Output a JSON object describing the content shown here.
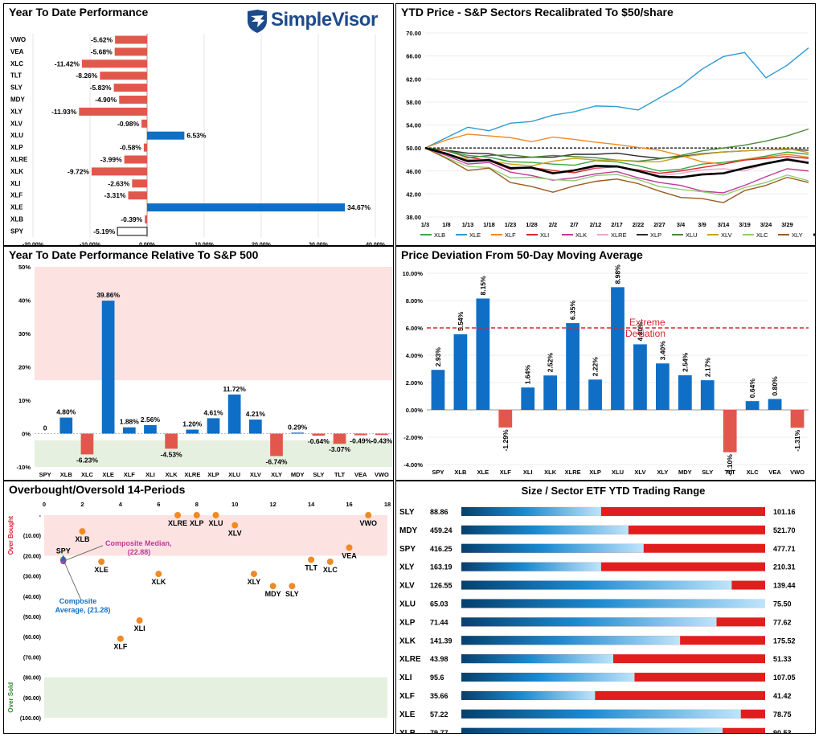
{
  "logo": {
    "text": "SimpleVisor",
    "icon": "eagle-logo-icon"
  },
  "colors": {
    "blue": "#0f6fc6",
    "red": "#e2574c",
    "dark": "#000000"
  },
  "panels": {
    "ytd": {
      "title": "Year To Date Performance"
    },
    "price": {
      "title": "YTD Price - S&P Sectors Recalibrated To $50/share"
    },
    "rel": {
      "title": "Year To Date Performance Relative To S&P 500"
    },
    "dev": {
      "title": "Price Deviation From 50-Day Moving Average",
      "annotation": [
        "Extreme",
        "Deviation"
      ]
    },
    "obos": {
      "title": "Overbought/Oversold 14-Periods",
      "top_label": "Over Bought",
      "bottom_label": "Over Sold"
    },
    "range": {
      "title": "Size / Sector ETF YTD Trading Range"
    }
  },
  "chart_data": [
    {
      "id": "ytd",
      "type": "bar",
      "orientation": "horizontal",
      "title": "Year To Date Performance",
      "categories": [
        "VWO",
        "VEA",
        "XLC",
        "TLT",
        "SLY",
        "MDY",
        "XLY",
        "XLV",
        "XLU",
        "XLP",
        "XLRE",
        "XLK",
        "XLI",
        "XLF",
        "XLE",
        "XLB",
        "SPY"
      ],
      "values": [
        -5.62,
        -5.68,
        -11.42,
        -8.26,
        -5.83,
        -4.9,
        -11.93,
        -0.98,
        6.53,
        -0.58,
        -3.99,
        -9.72,
        -2.63,
        -3.31,
        34.67,
        -0.39,
        -5.19
      ],
      "labels": [
        "-5.62%",
        "-5.68%",
        "-11.42%",
        "-8.26%",
        "-5.83%",
        "-4.90%",
        "-11.93%",
        "-0.98%",
        "6.53%",
        "-0.58%",
        "-3.99%",
        "-9.72%",
        "-2.63%",
        "-3.31%",
        "34.67%",
        "-0.39%",
        "-5.19%"
      ],
      "xlim": [
        -20,
        40
      ],
      "xticks": [
        "-20.00%",
        "-10.00%",
        "0.00%",
        "10.00%",
        "20.00%",
        "30.00%",
        "40.00%"
      ]
    },
    {
      "id": "price",
      "type": "line",
      "title": "YTD Price - S&P Sectors Recalibrated To $50/share",
      "ylim": [
        38,
        70
      ],
      "yticks": [
        "38.00",
        "42.00",
        "46.00",
        "50.00",
        "54.00",
        "58.00",
        "62.00",
        "66.00",
        "70.00"
      ],
      "xticks": [
        "1/3",
        "1/8",
        "1/13",
        "1/18",
        "1/23",
        "1/28",
        "2/2",
        "2/7",
        "2/12",
        "2/17",
        "2/22",
        "2/27",
        "3/4",
        "3/9",
        "3/14",
        "3/19",
        "3/24",
        "3/29"
      ],
      "x_days": [
        0,
        5,
        10,
        15,
        20,
        25,
        30,
        35,
        40,
        45,
        50,
        55,
        60,
        65,
        70,
        75,
        80,
        85,
        90
      ],
      "reference_line": 50,
      "series": [
        {
          "name": "XLB",
          "color": "#3aa648",
          "values": [
            50,
            49.6,
            48.7,
            48.4,
            47.6,
            47.5,
            47.2,
            47.0,
            47.8,
            47.6,
            46.9,
            46.0,
            46.3,
            47.2,
            47.5,
            48.0,
            48.6,
            49.3,
            48.9
          ]
        },
        {
          "name": "XLE",
          "color": "#2d9ad6",
          "values": [
            50,
            51.8,
            53.6,
            53.0,
            54.3,
            54.6,
            55.7,
            56.3,
            57.3,
            57.2,
            56.6,
            58.7,
            60.8,
            63.7,
            65.9,
            66.6,
            62.2,
            64.4,
            67.4
          ]
        },
        {
          "name": "XLF",
          "color": "#f08a24",
          "values": [
            50,
            51.4,
            52.4,
            52.1,
            51.8,
            51.1,
            51.9,
            51.5,
            51.0,
            50.6,
            50.1,
            49.6,
            48.7,
            47.6,
            47.2,
            48.0,
            48.4,
            48.9,
            48.4
          ]
        },
        {
          "name": "XLI",
          "color": "#d8262f",
          "values": [
            50,
            49.5,
            48.4,
            47.8,
            46.3,
            46.6,
            46.1,
            45.7,
            46.5,
            46.7,
            46.2,
            45.6,
            46.0,
            46.6,
            47.2,
            47.9,
            48.2,
            48.5,
            48.2
          ]
        },
        {
          "name": "XLK",
          "color": "#c0399b",
          "values": [
            50,
            48.7,
            47.2,
            47.5,
            45.8,
            45.2,
            44.4,
            44.8,
            45.5,
            45.9,
            44.8,
            44.0,
            43.5,
            42.5,
            42.2,
            43.5,
            45.0,
            46.4,
            46.0
          ]
        },
        {
          "name": "XLRE",
          "color": "#e8a6c8",
          "values": [
            50,
            48.9,
            47.8,
            48.1,
            46.6,
            46.4,
            45.8,
            46.2,
            46.6,
            46.9,
            46.1,
            45.2,
            45.6,
            46.2,
            46.4,
            46.0,
            47.3,
            48.2,
            47.6
          ]
        },
        {
          "name": "XLP",
          "color": "#2b2b2b",
          "values": [
            50,
            49.6,
            49.1,
            49.0,
            48.3,
            48.4,
            48.4,
            48.9,
            48.9,
            49.1,
            48.6,
            48.2,
            48.5,
            49.0,
            49.3,
            49.5,
            49.7,
            49.8,
            49.6
          ]
        },
        {
          "name": "XLU",
          "color": "#4b8a3a",
          "values": [
            50,
            49.6,
            48.3,
            48.7,
            48.8,
            48.4,
            48.7,
            48.5,
            48.3,
            47.9,
            47.7,
            48.1,
            48.7,
            49.5,
            50.0,
            50.5,
            51.2,
            52.1,
            53.3
          ]
        },
        {
          "name": "XLV",
          "color": "#c8a21a",
          "values": [
            50,
            49.0,
            48.0,
            47.8,
            47.2,
            46.9,
            47.7,
            48.2,
            47.9,
            47.9,
            47.6,
            47.6,
            48.4,
            48.9,
            49.3,
            49.5,
            49.7,
            49.9,
            49.2
          ]
        },
        {
          "name": "XLC",
          "color": "#8fcf6e",
          "values": [
            50,
            48.3,
            46.8,
            46.6,
            44.8,
            44.9,
            44.5,
            44.3,
            45.2,
            45.4,
            44.5,
            43.3,
            42.8,
            42.4,
            41.8,
            43.1,
            44.0,
            45.3,
            44.3
          ]
        },
        {
          "name": "XLY",
          "color": "#9c5a1e",
          "values": [
            50,
            48.2,
            46.1,
            46.5,
            44.0,
            43.3,
            42.3,
            43.4,
            44.2,
            44.6,
            43.8,
            42.5,
            41.4,
            41.2,
            40.5,
            42.6,
            43.5,
            44.9,
            44.0
          ]
        },
        {
          "name": "SPY",
          "color": "#000000",
          "width": 2.6,
          "values": [
            50,
            49.0,
            47.7,
            47.9,
            46.5,
            46.6,
            45.6,
            46.1,
            46.9,
            46.8,
            46.0,
            45.0,
            44.9,
            45.4,
            45.6,
            46.5,
            47.3,
            48.0,
            47.4
          ]
        }
      ]
    },
    {
      "id": "rel",
      "type": "bar",
      "title": "Year To Date Performance Relative To S&P 500",
      "categories": [
        "SPY",
        "XLB",
        "XLC",
        "XLE",
        "XLF",
        "XLI",
        "XLK",
        "XLRE",
        "XLP",
        "XLU",
        "XLV",
        "XLY",
        "MDY",
        "SLY",
        "TLT",
        "VEA",
        "VWO"
      ],
      "values": [
        0,
        4.8,
        -6.23,
        39.86,
        1.88,
        2.56,
        -4.53,
        1.2,
        4.61,
        11.72,
        4.21,
        -6.74,
        0.29,
        -0.64,
        -3.07,
        -0.49,
        -0.43
      ],
      "labels": [
        "0",
        "4.80%",
        "-6.23%",
        "39.86%",
        "1.88%",
        "2.56%",
        "-4.53%",
        "1.20%",
        "4.61%",
        "11.72%",
        "4.21%",
        "-6.74%",
        "0.29%",
        "-0.64%",
        "-3.07%",
        "-0.49%",
        "-0.43%"
      ],
      "ylim": [
        -10,
        50
      ],
      "yticks": [
        "-10%",
        "0%",
        "10%",
        "20%",
        "30%",
        "40%",
        "50%"
      ],
      "zones": {
        "overbought_above": 16,
        "oversold_below": -2
      }
    },
    {
      "id": "dev",
      "type": "bar",
      "title": "Price Deviation From 50-Day Moving Average",
      "categories": [
        "SPY",
        "XLB",
        "XLE",
        "XLF",
        "XLI",
        "XLK",
        "XLRE",
        "XLP",
        "XLU",
        "XLV",
        "XLY",
        "MDY",
        "SLY",
        "TLT",
        "XLC",
        "VEA",
        "VWO"
      ],
      "values": [
        2.93,
        5.54,
        8.15,
        -1.29,
        1.64,
        2.52,
        6.35,
        2.22,
        8.98,
        4.8,
        3.4,
        2.54,
        2.17,
        -3.1,
        0.64,
        0.8,
        -1.31
      ],
      "labels": [
        "2.93%",
        "5.54%",
        "8.15%",
        "-1.29%",
        "1.64%",
        "2.52%",
        "6.35%",
        "2.22%",
        "8.98%",
        "4.80%",
        "3.40%",
        "2.54%",
        "2.17%",
        "-3.10%",
        "0.64%",
        "0.80%",
        "-1.31%"
      ],
      "ylim": [
        -4,
        10
      ],
      "yticks": [
        "-4.00%",
        "-2.00%",
        "0.00%",
        "2.00%",
        "4.00%",
        "6.00%",
        "8.00%",
        "10.00%"
      ],
      "threshold": 6
    },
    {
      "id": "obos",
      "type": "scatter",
      "title": "Overbought/Oversold 14-Periods",
      "xlim": [
        0,
        18
      ],
      "xticks": [
        "0",
        "2",
        "4",
        "6",
        "8",
        "10",
        "12",
        "14",
        "16",
        "18"
      ],
      "ylim": [
        -100,
        0
      ],
      "yticks": [
        "-",
        "(10.00)",
        "(20.00)",
        "(30.00)",
        "(40.00)",
        "(50.00)",
        "(60.00)",
        "(70.00)",
        "(80.00)",
        "(90.00)",
        "(100.00)"
      ],
      "points": [
        {
          "label": "XLRE",
          "x": 7,
          "y": 0,
          "pos": "below"
        },
        {
          "label": "XLP",
          "x": 8,
          "y": 0,
          "pos": "below"
        },
        {
          "label": "XLU",
          "x": 9,
          "y": 0,
          "pos": "below"
        },
        {
          "label": "XLV",
          "x": 10,
          "y": -5,
          "pos": "below"
        },
        {
          "label": "VWO",
          "x": 17,
          "y": 0,
          "pos": "below"
        },
        {
          "label": "XLB",
          "x": 2,
          "y": -8,
          "pos": "below"
        },
        {
          "label": "XLE",
          "x": 3,
          "y": -23,
          "pos": "below"
        },
        {
          "label": "XLK",
          "x": 6,
          "y": -29,
          "pos": "below"
        },
        {
          "label": "XLY",
          "x": 11,
          "y": -29,
          "pos": "below"
        },
        {
          "label": "MDY",
          "x": 12,
          "y": -35,
          "pos": "below"
        },
        {
          "label": "SLY",
          "x": 13,
          "y": -35,
          "pos": "below"
        },
        {
          "label": "TLT",
          "x": 14,
          "y": -22,
          "pos": "below"
        },
        {
          "label": "XLC",
          "x": 15,
          "y": -23,
          "pos": "below"
        },
        {
          "label": "VEA",
          "x": 16,
          "y": -16,
          "pos": "below"
        },
        {
          "label": "XLI",
          "x": 5,
          "y": -52,
          "pos": "below"
        },
        {
          "label": "XLF",
          "x": 4,
          "y": -61,
          "pos": "below"
        },
        {
          "label": "SPY",
          "x": 1,
          "y": -22,
          "pos": "above"
        }
      ],
      "composite_median": {
        "label": "Composite Median,",
        "value_label": "(22.88)",
        "x": 1,
        "y": -22.88
      },
      "composite_average": {
        "label": "Composite",
        "value_label": "Average,  (21.28)",
        "x": 1,
        "y": -21.28
      },
      "zones": {
        "overbought_above": -20,
        "oversold_below": -80
      }
    },
    {
      "id": "range",
      "type": "table",
      "title": "Size / Sector ETF YTD Trading Range",
      "columns": [
        "Ticker",
        "Low",
        "Range",
        "High"
      ],
      "rows": [
        {
          "ticker": "SLY",
          "low": "88.86",
          "high": "101.16",
          "fraction": 0.46
        },
        {
          "ticker": "MDY",
          "low": "459.24",
          "high": "521.70",
          "fraction": 0.55
        },
        {
          "ticker": "SPY",
          "low": "416.25",
          "high": "477.71",
          "fraction": 0.6
        },
        {
          "ticker": "XLY",
          "low": "163.19",
          "high": "210.31",
          "fraction": 0.46
        },
        {
          "ticker": "XLV",
          "low": "126.55",
          "high": "139.44",
          "fraction": 0.89
        },
        {
          "ticker": "XLU",
          "low": "65.03",
          "high": "75.50",
          "fraction": 1.0
        },
        {
          "ticker": "XLP",
          "low": "71.44",
          "high": "77.62",
          "fraction": 0.84
        },
        {
          "ticker": "XLK",
          "low": "141.39",
          "high": "175.52",
          "fraction": 0.72
        },
        {
          "ticker": "XLRE",
          "low": "43.98",
          "high": "51.33",
          "fraction": 0.5
        },
        {
          "ticker": "XLI",
          "low": "95.6",
          "high": "107.05",
          "fraction": 0.57
        },
        {
          "ticker": "XLF",
          "low": "35.66",
          "high": "41.42",
          "fraction": 0.44
        },
        {
          "ticker": "XLE",
          "low": "57.22",
          "high": "78.75",
          "fraction": 0.92
        },
        {
          "ticker": "XLB",
          "low": "79.77",
          "high": "90.53",
          "fraction": 0.86
        }
      ]
    }
  ]
}
